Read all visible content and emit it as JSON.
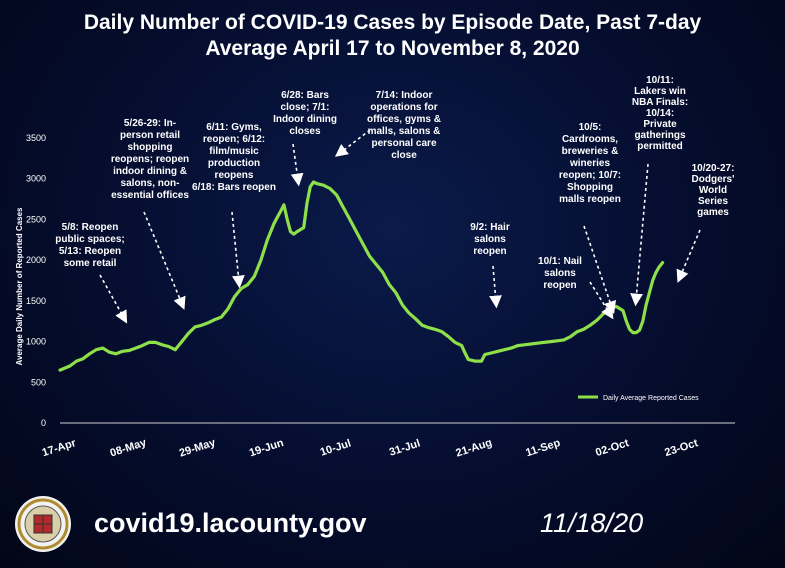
{
  "title_line1": "Daily Number of COVID-19 Cases by Episode Date, Past 7-day",
  "title_line2": "Average April 17 to November 8, 2020",
  "footer": {
    "url": "covid19.lacounty.gov",
    "date": "11/18/20"
  },
  "colors": {
    "line": "#8ee04a",
    "text": "#ffffff",
    "background": "#050d2e"
  },
  "chart_data": {
    "type": "line",
    "ylabel": "Average Daily Number of Reported Cases",
    "ylim": [
      0,
      3500
    ],
    "yticks": [
      0,
      500,
      1000,
      1500,
      2000,
      2500,
      3000,
      3500
    ],
    "xtick_labels": [
      "17-Apr",
      "08-May",
      "29-May",
      "19-Jun",
      "10-Jul",
      "31-Jul",
      "21-Aug",
      "11-Sep",
      "02-Oct",
      "23-Oct"
    ],
    "xtick_days": [
      0,
      21,
      42,
      63,
      84,
      105,
      126,
      147,
      168,
      189
    ],
    "xlim_days": [
      0,
      205
    ],
    "grid": false,
    "legend": "bottom-right",
    "series": [
      {
        "name": "Daily Average Reported Cases",
        "points": [
          [
            0,
            650
          ],
          [
            3,
            700
          ],
          [
            5,
            760
          ],
          [
            7,
            790
          ],
          [
            9,
            850
          ],
          [
            11,
            900
          ],
          [
            13,
            920
          ],
          [
            15,
            870
          ],
          [
            17,
            850
          ],
          [
            19,
            880
          ],
          [
            21,
            890
          ],
          [
            23,
            920
          ],
          [
            25,
            950
          ],
          [
            27,
            990
          ],
          [
            29,
            990
          ],
          [
            31,
            960
          ],
          [
            33,
            940
          ],
          [
            35,
            900
          ],
          [
            37,
            1000
          ],
          [
            39,
            1100
          ],
          [
            41,
            1180
          ],
          [
            43,
            1200
          ],
          [
            45,
            1230
          ],
          [
            47,
            1270
          ],
          [
            49,
            1300
          ],
          [
            51,
            1400
          ],
          [
            53,
            1550
          ],
          [
            55,
            1650
          ],
          [
            57,
            1700
          ],
          [
            59,
            1800
          ],
          [
            61,
            2000
          ],
          [
            63,
            2250
          ],
          [
            65,
            2450
          ],
          [
            67,
            2600
          ],
          [
            68,
            2680
          ],
          [
            69,
            2500
          ],
          [
            70,
            2350
          ],
          [
            71,
            2320
          ],
          [
            72,
            2350
          ],
          [
            74,
            2400
          ],
          [
            75,
            2700
          ],
          [
            76,
            2900
          ],
          [
            77,
            2960
          ],
          [
            78,
            2940
          ],
          [
            80,
            2920
          ],
          [
            82,
            2880
          ],
          [
            84,
            2800
          ],
          [
            86,
            2650
          ],
          [
            88,
            2500
          ],
          [
            90,
            2350
          ],
          [
            92,
            2200
          ],
          [
            94,
            2050
          ],
          [
            96,
            1950
          ],
          [
            98,
            1850
          ],
          [
            100,
            1700
          ],
          [
            102,
            1600
          ],
          [
            104,
            1450
          ],
          [
            106,
            1350
          ],
          [
            108,
            1280
          ],
          [
            110,
            1200
          ],
          [
            112,
            1170
          ],
          [
            114,
            1150
          ],
          [
            116,
            1120
          ],
          [
            118,
            1060
          ],
          [
            120,
            990
          ],
          [
            122,
            950
          ],
          [
            123,
            860
          ],
          [
            124,
            780
          ],
          [
            126,
            760
          ],
          [
            128,
            760
          ],
          [
            129,
            840
          ],
          [
            131,
            860
          ],
          [
            133,
            880
          ],
          [
            135,
            900
          ],
          [
            137,
            920
          ],
          [
            139,
            950
          ],
          [
            141,
            960
          ],
          [
            143,
            970
          ],
          [
            145,
            980
          ],
          [
            147,
            990
          ],
          [
            149,
            1000
          ],
          [
            151,
            1010
          ],
          [
            153,
            1020
          ],
          [
            155,
            1060
          ],
          [
            157,
            1120
          ],
          [
            159,
            1150
          ],
          [
            161,
            1200
          ],
          [
            163,
            1260
          ],
          [
            165,
            1340
          ],
          [
            167,
            1420
          ],
          [
            169,
            1430
          ],
          [
            171,
            1380
          ],
          [
            172,
            1250
          ],
          [
            173,
            1150
          ],
          [
            174,
            1110
          ],
          [
            175,
            1110
          ],
          [
            176,
            1140
          ],
          [
            177,
            1250
          ],
          [
            178,
            1450
          ],
          [
            179,
            1600
          ],
          [
            180,
            1750
          ],
          [
            181,
            1850
          ],
          [
            182,
            1920
          ],
          [
            183,
            1970
          ]
        ]
      }
    ],
    "annotations": [
      {
        "id": "a1",
        "lines": [
          "5/8: Reopen",
          "public spaces;",
          "5/13: Reopen",
          "some retail"
        ]
      },
      {
        "id": "a2",
        "lines": [
          "5/26-29: In-",
          "person retail",
          "shopping",
          "reopens; reopen",
          "indoor dining &",
          "salons, non-",
          "essential offices"
        ]
      },
      {
        "id": "a3",
        "lines": [
          "6/11: Gyms,",
          "reopen; 6/12:",
          "film/music",
          "production",
          "reopens",
          "6/18: Bars reopen"
        ]
      },
      {
        "id": "a4",
        "lines": [
          "6/28: Bars",
          "close; 7/1:",
          "Indoor dining",
          "closes"
        ]
      },
      {
        "id": "a5",
        "lines": [
          "7/14: Indoor",
          "operations for",
          "offices, gyms &",
          "malls, salons &",
          "personal care",
          "close"
        ]
      },
      {
        "id": "a6",
        "lines": [
          "9/2: Hair",
          "salons",
          "reopen"
        ]
      },
      {
        "id": "a7",
        "lines": [
          "10/1: Nail",
          "salons",
          "reopen"
        ]
      },
      {
        "id": "a8",
        "lines": [
          "10/5:",
          "Cardrooms,",
          "breweries &",
          "wineries",
          "reopen; 10/7:",
          "Shopping",
          "malls reopen"
        ]
      },
      {
        "id": "a9",
        "lines": [
          "10/11:",
          "Lakers win",
          "NBA Finals:",
          "10/14:",
          "Private",
          "gatherings",
          "permitted"
        ]
      },
      {
        "id": "a10",
        "lines": [
          "10/20-27:",
          "Dodgers'",
          "World",
          "Series",
          "games"
        ]
      }
    ]
  }
}
